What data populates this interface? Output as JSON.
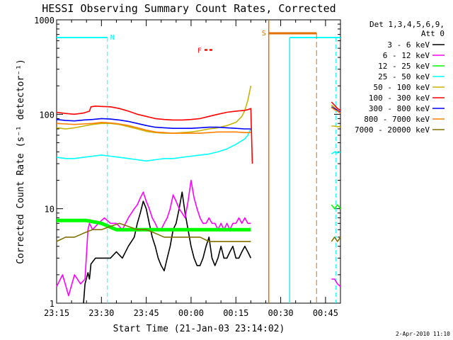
{
  "chart_data": {
    "type": "line",
    "title": "HESSI Observing Summary Count Rates, Corrected",
    "xlabel": "Start Time (21-Jan-03 23:14:02)",
    "ylabel": "Corrected Count Rate (s⁻¹ detector⁻¹)",
    "yscale": "log",
    "ylim": [
      1,
      1000
    ],
    "xlim_minutes_after_23_15": [
      0,
      95
    ],
    "xticks": [
      {
        "label": "23:15",
        "t": 0
      },
      {
        "label": "23:30",
        "t": 15
      },
      {
        "label": "23:45",
        "t": 30
      },
      {
        "label": "00:00",
        "t": 45
      },
      {
        "label": "00:15",
        "t": 60
      },
      {
        "label": "00:30",
        "t": 75
      },
      {
        "label": "00:45",
        "t": 90
      }
    ],
    "yticks": [
      {
        "label": "1",
        "v": 1
      },
      {
        "label": "10",
        "v": 10
      },
      {
        "label": "100",
        "v": 100
      },
      {
        "label": "1000",
        "v": 1000
      }
    ],
    "legend": {
      "header": [
        "Det 1,3,4,5,6,9,",
        "Att 0"
      ],
      "placement": "right"
    },
    "series": [
      {
        "name": "3 - 6 keV",
        "color": "#000000",
        "t": [
          9,
          9.5,
          10.5,
          11,
          11.5,
          13,
          15,
          17,
          18,
          20,
          22,
          24,
          26,
          27,
          28,
          29,
          30,
          31,
          32,
          33,
          34,
          35,
          36,
          37,
          38,
          39,
          40,
          41,
          42,
          43,
          44,
          45,
          46,
          47,
          48,
          49,
          50,
          51,
          52,
          53,
          54,
          55,
          56,
          57,
          58,
          59,
          60,
          61,
          62,
          63,
          64,
          65
        ],
        "v": [
          1,
          1.6,
          2.1,
          1.8,
          2.6,
          3,
          3,
          3,
          3,
          3.5,
          3,
          4,
          5,
          7,
          9,
          12,
          10,
          7,
          5,
          4,
          3,
          2.5,
          2.2,
          3,
          4,
          6,
          7,
          10,
          15,
          9,
          6,
          4,
          3,
          2.5,
          2.5,
          3,
          4,
          5,
          3,
          2.5,
          3,
          4,
          3,
          3,
          3.5,
          4,
          3,
          3,
          3.5,
          4,
          3.5,
          3
        ]
      },
      {
        "name": "6 - 12 keV",
        "color": "#ff00ff",
        "t": [
          0,
          2,
          4,
          6,
          8,
          9.5,
          10.5,
          11,
          12,
          14,
          16,
          18,
          20,
          22,
          24,
          26,
          27,
          28,
          29,
          30,
          31,
          32,
          33,
          34,
          35,
          36,
          37,
          38,
          39,
          40,
          41,
          42,
          43,
          44,
          45,
          46,
          47,
          48,
          49,
          50,
          51,
          52,
          53,
          54,
          55,
          56,
          57,
          58,
          59,
          60,
          61,
          62,
          63,
          64,
          65
        ],
        "v": [
          1.5,
          2,
          1.2,
          2,
          1.6,
          1.8,
          6,
          7,
          6,
          7,
          8,
          7,
          7,
          6,
          8,
          10,
          11,
          13,
          15,
          12,
          10,
          8,
          7,
          6,
          6,
          7,
          8,
          10,
          14,
          12,
          10,
          9,
          8,
          12,
          20,
          13,
          10,
          8,
          7,
          7,
          8,
          7,
          7,
          6,
          7,
          6,
          7,
          6,
          7,
          7,
          8,
          7,
          8,
          7,
          7
        ]
      },
      {
        "name": "12 - 25 keV",
        "color": "#00ff00",
        "t": [
          0,
          5,
          10,
          15,
          20,
          25,
          30,
          35,
          40,
          45,
          50,
          55,
          60,
          65
        ],
        "v": [
          7.5,
          7.5,
          7.5,
          7,
          6,
          6,
          6,
          6,
          6,
          6,
          6,
          6,
          6,
          6
        ]
      },
      {
        "name": "25 - 50 keV",
        "color": "#00ffff",
        "t": [
          0,
          3,
          6,
          9,
          12,
          15,
          18,
          21,
          24,
          27,
          30,
          33,
          36,
          39,
          42,
          45,
          48,
          51,
          54,
          57,
          60,
          63,
          64,
          65
        ],
        "v": [
          35,
          34,
          34,
          35,
          36,
          37,
          36,
          35,
          34,
          33,
          32,
          33,
          34,
          34,
          35,
          36,
          37,
          38,
          40,
          43,
          48,
          55,
          60,
          70
        ]
      },
      {
        "name": "50 - 100 keV",
        "color": "#c8b400",
        "t": [
          0,
          3,
          6,
          9,
          12,
          15,
          18,
          21,
          24,
          27,
          30,
          33,
          36,
          39,
          42,
          45,
          48,
          51,
          54,
          57,
          60,
          62,
          63,
          64,
          65
        ],
        "v": [
          72,
          70,
          72,
          75,
          78,
          80,
          80,
          78,
          74,
          70,
          66,
          64,
          63,
          63,
          64,
          65,
          67,
          70,
          72,
          76,
          82,
          95,
          110,
          140,
          200
        ]
      },
      {
        "name": "100 - 300 keV",
        "color": "#ff0000",
        "t": [
          0,
          3,
          6,
          9,
          11,
          11.5,
          13,
          15,
          18,
          21,
          24,
          27,
          30,
          33,
          36,
          39,
          42,
          45,
          48,
          51,
          54,
          57,
          60,
          63,
          64,
          65,
          65.5
        ],
        "v": [
          105,
          102,
          100,
          103,
          108,
          120,
          122,
          121,
          120,
          115,
          108,
          100,
          95,
          90,
          88,
          87,
          87,
          88,
          90,
          95,
          100,
          105,
          108,
          110,
          112,
          115,
          30
        ]
      },
      {
        "name": "300 - 800 keV",
        "color": "#0000ff",
        "t": [
          0,
          3,
          6,
          9,
          12,
          15,
          18,
          21,
          24,
          27,
          30,
          33,
          36,
          39,
          42,
          45,
          48,
          51,
          54,
          57,
          60,
          63,
          65
        ],
        "v": [
          88,
          86,
          85,
          87,
          88,
          90,
          89,
          87,
          84,
          80,
          76,
          73,
          72,
          71,
          71,
          71,
          72,
          73,
          73,
          72,
          71,
          70,
          70
        ]
      },
      {
        "name": "800 - 7000 keV",
        "color": "#ff8000",
        "t": [
          0,
          3,
          6,
          9,
          12,
          15,
          18,
          21,
          24,
          27,
          30,
          33,
          36,
          39,
          42,
          45,
          48,
          51,
          54,
          57,
          60,
          63,
          65
        ],
        "v": [
          80,
          79,
          78,
          79,
          80,
          82,
          81,
          79,
          76,
          72,
          68,
          65,
          64,
          63,
          63,
          63,
          63,
          64,
          65,
          65,
          65,
          64,
          64
        ]
      },
      {
        "name": "7000 - 20000 keV",
        "color": "#807000",
        "t": [
          0,
          3,
          6,
          9,
          12,
          15,
          18,
          21,
          24,
          27,
          30,
          33,
          36,
          39,
          42,
          45,
          48,
          51,
          54,
          57,
          60,
          63,
          65
        ],
        "v": [
          4.5,
          5,
          5,
          5.5,
          6,
          6,
          6.5,
          7,
          6.5,
          6,
          6,
          5.5,
          5,
          5,
          5,
          5,
          5,
          4.5,
          4.5,
          4.5,
          4.5,
          4.5,
          4.5
        ]
      }
    ],
    "late_series": [
      {
        "color": "#ff0000",
        "t": [
          92,
          93,
          94,
          95
        ],
        "v": [
          135,
          125,
          115,
          110
        ]
      },
      {
        "color": "#c8b400",
        "t": [
          92,
          93,
          94,
          95
        ],
        "v": [
          125,
          118,
          110,
          105
        ]
      },
      {
        "color": "#0000ff",
        "t": [
          92,
          93,
          94,
          95
        ],
        "v": [
          120,
          115,
          110,
          105
        ]
      },
      {
        "color": "#ff8000",
        "t": [
          92,
          93,
          94,
          95
        ],
        "v": [
          118,
          112,
          108,
          103
        ]
      },
      {
        "color": "#c8b400",
        "t": [
          92,
          93,
          94,
          95
        ],
        "v": [
          75,
          75,
          74,
          74
        ]
      },
      {
        "color": "#00ffff",
        "t": [
          92,
          93,
          94,
          95
        ],
        "v": [
          38,
          40,
          39,
          40
        ]
      },
      {
        "color": "#00ff00",
        "t": [
          92,
          93,
          94,
          95
        ],
        "v": [
          11,
          10,
          11,
          10
        ]
      },
      {
        "color": "#807000",
        "t": [
          92,
          93,
          94,
          95
        ],
        "v": [
          4.5,
          5,
          4.5,
          5
        ]
      },
      {
        "color": "#ff00ff",
        "t": [
          92,
          93,
          94,
          95
        ],
        "v": [
          1.8,
          1.8,
          1.6,
          1.5
        ]
      }
    ],
    "annotations": {
      "night_label": "N",
      "saa_label": "S",
      "flare_label": "F",
      "night_bar_color": "#00ffff",
      "saa_bar_color": "#e07000",
      "flare_color": "#ff0000",
      "night_intervals": [
        [
          0,
          17
        ],
        [
          78,
          95
        ]
      ],
      "saa_interval": [
        71,
        87
      ],
      "flare_marker_t": [
        49.5,
        52.5
      ]
    }
  },
  "footer": {
    "timestamp": "2-Apr-2010 11:10"
  }
}
